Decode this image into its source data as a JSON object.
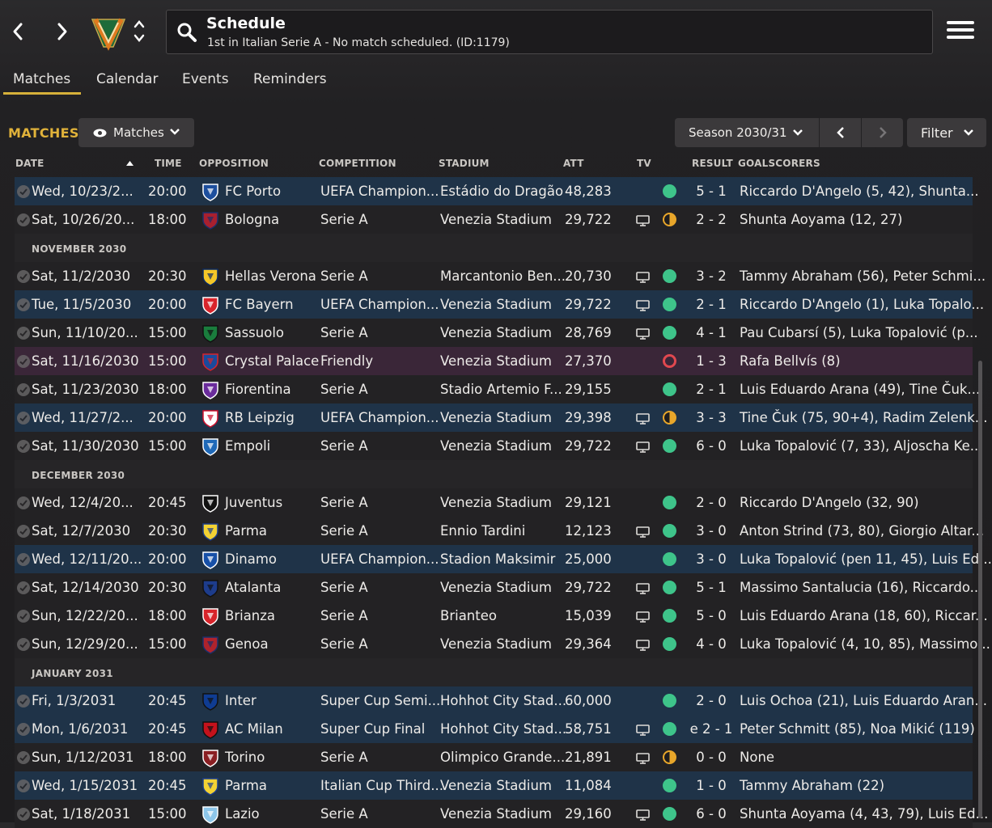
{
  "header": {
    "title": "Schedule",
    "subtitle": "1st in Italian Serie A - No match scheduled. (ID:1179)"
  },
  "tabs": [
    {
      "label": "Matches"
    },
    {
      "label": "Calendar"
    },
    {
      "label": "Events"
    },
    {
      "label": "Reminders"
    }
  ],
  "toolbar": {
    "section_label": "MATCHES",
    "view_label": "Matches",
    "season_label": "Season 2030/31",
    "filter_label": "Filter"
  },
  "columns": {
    "date": "DATE",
    "time": "TIME",
    "opposition": "OPPOSITION",
    "competition": "COMPETITION",
    "stadium": "STADIUM",
    "att": "ATT",
    "tv": "TV",
    "result": "RESULT",
    "goalscorers": "GOALSCORERS"
  },
  "colors": {
    "accent": "#e0b23a",
    "win": "#3ec48a",
    "draw": "#e8a62a",
    "loss": "#e0484f",
    "uefa_row": "#1f3348",
    "friendly_row": "#3a2638"
  },
  "rows": [
    {
      "kind": "match",
      "style": "uefa",
      "date": "Wed, 10/23/2...",
      "time": "20:00",
      "opponent": "FC Porto",
      "crest": "porto-crest-icon",
      "competition": "UEFA Champion...",
      "stadium": "Estádio do Dragão",
      "att": "48,283",
      "tv": false,
      "status": "win",
      "result": "5 - 1",
      "scorers": "Riccardo D'Angelo (5, 42), Shunta..."
    },
    {
      "kind": "match",
      "style": "stripe",
      "date": "Sat, 10/26/20...",
      "time": "18:00",
      "opponent": "Bologna",
      "crest": "bologna-crest-icon",
      "competition": "Serie A",
      "stadium": "Venezia Stadium",
      "att": "29,722",
      "tv": true,
      "status": "draw",
      "result": "2 - 2",
      "scorers": "Shunta Aoyama (12, 27)"
    },
    {
      "kind": "month",
      "label": "NOVEMBER 2030"
    },
    {
      "kind": "match",
      "style": "stripe",
      "date": "Sat, 11/2/2030",
      "time": "20:30",
      "opponent": "Hellas Verona",
      "crest": "verona-crest-icon",
      "competition": "Serie A",
      "stadium": "Marcantonio Ben...",
      "att": "20,730",
      "tv": true,
      "status": "win",
      "result": "3 - 2",
      "scorers": "Tammy Abraham (56), Peter Schmi..."
    },
    {
      "kind": "match",
      "style": "uefa",
      "date": "Tue, 11/5/2030",
      "time": "20:00",
      "opponent": "FC Bayern",
      "crest": "bayern-crest-icon",
      "competition": "UEFA Champion...",
      "stadium": "Venezia Stadium",
      "att": "29,722",
      "tv": true,
      "status": "win",
      "result": "2 - 1",
      "scorers": "Riccardo D'Angelo (1), Luka Topalo..."
    },
    {
      "kind": "match",
      "style": "stripe",
      "date": "Sun, 11/10/20...",
      "time": "15:00",
      "opponent": "Sassuolo",
      "crest": "sassuolo-crest-icon",
      "competition": "Serie A",
      "stadium": "Venezia Stadium",
      "att": "28,769",
      "tv": true,
      "status": "win",
      "result": "4 - 1",
      "scorers": "Pau Cubarsí (5), Luka Topalović (p..."
    },
    {
      "kind": "match",
      "style": "friendly",
      "date": "Sat, 11/16/2030",
      "time": "15:00",
      "opponent": "Crystal Palace",
      "crest": "crystal-palace-crest-icon",
      "competition": "Friendly",
      "stadium": "Venezia Stadium",
      "att": "27,370",
      "tv": false,
      "status": "loss",
      "result": "1 - 3",
      "scorers": "Rafa Bellvís (8)"
    },
    {
      "kind": "match",
      "style": "stripe",
      "date": "Sat, 11/23/2030",
      "time": "18:00",
      "opponent": "Fiorentina",
      "crest": "fiorentina-crest-icon",
      "competition": "Serie A",
      "stadium": "Stadio Artemio F...",
      "att": "29,155",
      "tv": false,
      "status": "win",
      "result": "2 - 1",
      "scorers": "Luis Eduardo Arana (49), Tine Čuk..."
    },
    {
      "kind": "match",
      "style": "uefa",
      "date": "Wed, 11/27/2...",
      "time": "20:00",
      "opponent": "RB Leipzig",
      "crest": "leipzig-crest-icon",
      "competition": "UEFA Champion...",
      "stadium": "Venezia Stadium",
      "att": "29,398",
      "tv": true,
      "status": "draw",
      "result": "3 - 3",
      "scorers": "Tine Čuk (75, 90+4), Radim Zelenk..."
    },
    {
      "kind": "match",
      "style": "stripe",
      "date": "Sat, 11/30/2030",
      "time": "15:00",
      "opponent": "Empoli",
      "crest": "empoli-crest-icon",
      "competition": "Serie A",
      "stadium": "Venezia Stadium",
      "att": "29,722",
      "tv": true,
      "status": "win",
      "result": "6 - 0",
      "scorers": "Luka Topalović (7, 33), Aljoscha Ke..."
    },
    {
      "kind": "month",
      "label": "DECEMBER 2030"
    },
    {
      "kind": "match",
      "style": "stripe",
      "date": "Wed, 12/4/20...",
      "time": "20:45",
      "opponent": "Juventus",
      "crest": "juventus-crest-icon",
      "competition": "Serie A",
      "stadium": "Venezia Stadium",
      "att": "29,121",
      "tv": false,
      "status": "win",
      "result": "2 - 0",
      "scorers": "Riccardo D'Angelo (32, 90)"
    },
    {
      "kind": "match",
      "style": "stripe",
      "date": "Sat, 12/7/2030",
      "time": "20:30",
      "opponent": "Parma",
      "crest": "parma-crest-icon",
      "competition": "Serie A",
      "stadium": "Ennio Tardini",
      "att": "12,123",
      "tv": true,
      "status": "win",
      "result": "3 - 0",
      "scorers": "Anton Strind (73, 80), Giorgio Altar..."
    },
    {
      "kind": "match",
      "style": "uefa",
      "date": "Wed, 12/11/20...",
      "time": "20:00",
      "opponent": "Dinamo",
      "crest": "dinamo-crest-icon",
      "competition": "UEFA Champion...",
      "stadium": "Stadion Maksimir",
      "att": "25,000",
      "tv": false,
      "status": "win",
      "result": "3 - 0",
      "scorers": "Luka Topalović (pen 11, 45), Luis Ed..."
    },
    {
      "kind": "match",
      "style": "stripe",
      "date": "Sat, 12/14/2030",
      "time": "20:30",
      "opponent": "Atalanta",
      "crest": "atalanta-crest-icon",
      "competition": "Serie A",
      "stadium": "Venezia Stadium",
      "att": "29,722",
      "tv": true,
      "status": "win",
      "result": "5 - 1",
      "scorers": "Massimo Santalucia (16), Riccardo..."
    },
    {
      "kind": "match",
      "style": "stripe",
      "date": "Sun, 12/22/20...",
      "time": "18:00",
      "opponent": "Brianza",
      "crest": "brianza-crest-icon",
      "competition": "Serie A",
      "stadium": "Brianteo",
      "att": "15,039",
      "tv": true,
      "status": "win",
      "result": "5 - 0",
      "scorers": "Luis Eduardo Arana (18, 60), Riccar..."
    },
    {
      "kind": "match",
      "style": "stripe",
      "date": "Sun, 12/29/20...",
      "time": "15:00",
      "opponent": "Genoa",
      "crest": "genoa-crest-icon",
      "competition": "Serie A",
      "stadium": "Venezia Stadium",
      "att": "29,364",
      "tv": true,
      "status": "win",
      "result": "4 - 0",
      "scorers": "Luka Topalović (4, 10, 85), Massimo..."
    },
    {
      "kind": "month",
      "label": "JANUARY 2031"
    },
    {
      "kind": "match",
      "style": "uefa",
      "date": "Fri, 1/3/2031",
      "time": "20:45",
      "opponent": "Inter",
      "crest": "inter-crest-icon",
      "competition": "Super Cup Semi...",
      "stadium": "Hohhot City Stad...",
      "att": "60,000",
      "tv": false,
      "status": "win",
      "result": "2 - 0",
      "scorers": "Luis Ochoa (21), Luis Eduardo Aran..."
    },
    {
      "kind": "match",
      "style": "uefa",
      "date": "Mon, 1/6/2031",
      "time": "20:45",
      "opponent": "AC Milan",
      "crest": "milan-crest-icon",
      "competition": "Super Cup Final",
      "stadium": "Hohhot City Stad...",
      "att": "58,751",
      "tv": true,
      "status": "win",
      "result": "e 2 - 1",
      "scorers": "Peter Schmitt (85), Noa Mikić (119)"
    },
    {
      "kind": "match",
      "style": "stripe",
      "date": "Sun, 1/12/2031",
      "time": "18:00",
      "opponent": "Torino",
      "crest": "torino-crest-icon",
      "competition": "Serie A",
      "stadium": "Olimpico Grande...",
      "att": "21,891",
      "tv": true,
      "status": "draw",
      "result": "0 - 0",
      "scorers": "None"
    },
    {
      "kind": "match",
      "style": "uefa",
      "date": "Wed, 1/15/2031",
      "time": "20:45",
      "opponent": "Parma",
      "crest": "parma-crest-icon",
      "competition": "Italian Cup Third...",
      "stadium": "Venezia Stadium",
      "att": "11,084",
      "tv": false,
      "status": "win",
      "result": "1 - 0",
      "scorers": "Tammy Abraham (22)"
    },
    {
      "kind": "match",
      "style": "stripe",
      "date": "Sat, 1/18/2031",
      "time": "15:00",
      "opponent": "Lazio",
      "crest": "lazio-crest-icon",
      "competition": "Serie A",
      "stadium": "Venezia Stadium",
      "att": "29,160",
      "tv": true,
      "status": "win",
      "result": "6 - 0",
      "scorers": "Shunta Aoyama (4, 43, 79), Luis Ed..."
    }
  ]
}
